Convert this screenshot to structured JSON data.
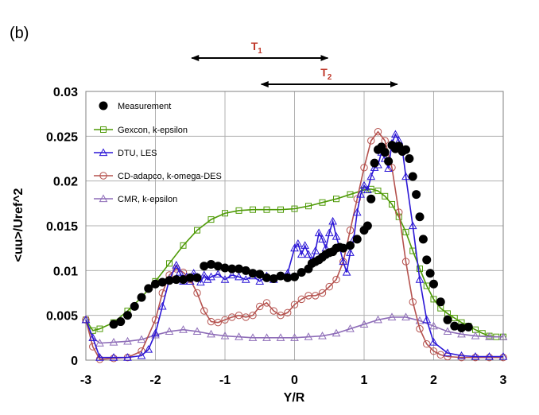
{
  "panel_label": "(b)",
  "annotations": [
    {
      "label": "T",
      "subscript": "1",
      "x_from": -1.5,
      "x_to": 0.5,
      "color": "#c0392b"
    },
    {
      "label": "T",
      "subscript": "2",
      "x_from": -0.5,
      "x_to": 1.5,
      "color": "#c0392b"
    }
  ],
  "chart_data": {
    "type": "line",
    "xlabel": "Y/R",
    "ylabel": "<uu>/Uref^2",
    "xlim": [
      -3,
      3
    ],
    "ylim": [
      0,
      0.03
    ],
    "xticks": [
      "-3",
      "-2",
      "-1",
      "0",
      "1",
      "2",
      "3"
    ],
    "yticks": [
      "0",
      "0.005",
      "0.01",
      "0.015",
      "0.02",
      "0.025",
      "0.03"
    ],
    "grid": true,
    "legend_position": "top-left",
    "series": [
      {
        "name": "Measurement",
        "color": "#000000",
        "marker": "filled-circle",
        "line": false,
        "x": [
          -2.6,
          -2.5,
          -2.4,
          -2.3,
          -2.2,
          -2.1,
          -2.0,
          -1.9,
          -1.8,
          -1.7,
          -1.6,
          -1.5,
          -1.4,
          -1.3,
          -1.2,
          -1.1,
          -1.0,
          -0.9,
          -0.8,
          -0.7,
          -0.6,
          -0.5,
          -0.4,
          -0.3,
          -0.2,
          -0.1,
          0.0,
          0.1,
          0.2,
          0.25,
          0.3,
          0.35,
          0.4,
          0.45,
          0.5,
          0.55,
          0.6,
          0.65,
          0.7,
          0.8,
          0.9,
          1.0,
          1.05,
          1.1,
          1.15,
          1.2,
          1.25,
          1.3,
          1.35,
          1.4,
          1.45,
          1.5,
          1.55,
          1.6,
          1.65,
          1.7,
          1.75,
          1.8,
          1.85,
          1.9,
          1.95,
          2.0,
          2.1,
          2.2,
          2.3,
          2.4,
          2.5
        ],
        "y": [
          0.004,
          0.0043,
          0.005,
          0.006,
          0.007,
          0.008,
          0.0085,
          0.0087,
          0.0089,
          0.009,
          0.009,
          0.0092,
          0.0092,
          0.0105,
          0.0107,
          0.0105,
          0.0103,
          0.0102,
          0.0102,
          0.01,
          0.0097,
          0.0096,
          0.0092,
          0.0091,
          0.0094,
          0.0092,
          0.0093,
          0.0098,
          0.0102,
          0.0108,
          0.011,
          0.0112,
          0.0115,
          0.0118,
          0.012,
          0.0121,
          0.0125,
          0.0126,
          0.0125,
          0.0128,
          0.0135,
          0.0145,
          0.015,
          0.018,
          0.022,
          0.0235,
          0.0238,
          0.0232,
          0.0222,
          0.024,
          0.0236,
          0.0239,
          0.0233,
          0.0235,
          0.0225,
          0.0205,
          0.0185,
          0.016,
          0.0135,
          0.0112,
          0.0097,
          0.0085,
          0.0065,
          0.0045,
          0.0038,
          0.0036,
          0.0037
        ]
      },
      {
        "name": "Gexcon, k-epsilon",
        "color": "#4e9a06",
        "marker": "open-square",
        "line": true,
        "x": [
          -3.0,
          -2.9,
          -2.8,
          -2.6,
          -2.4,
          -2.2,
          -2.0,
          -1.8,
          -1.6,
          -1.4,
          -1.2,
          -1.0,
          -0.8,
          -0.6,
          -0.4,
          -0.2,
          0.0,
          0.2,
          0.4,
          0.6,
          0.8,
          1.0,
          1.1,
          1.2,
          1.3,
          1.4,
          1.5,
          1.6,
          1.7,
          1.8,
          1.9,
          2.0,
          2.1,
          2.2,
          2.3,
          2.4,
          2.5,
          2.6,
          2.7,
          2.8,
          2.9,
          3.0
        ],
        "y": [
          0.0045,
          0.0033,
          0.0035,
          0.0042,
          0.0055,
          0.007,
          0.0088,
          0.0108,
          0.0128,
          0.0145,
          0.0157,
          0.0164,
          0.0167,
          0.0168,
          0.0168,
          0.0168,
          0.0169,
          0.0172,
          0.0176,
          0.018,
          0.0185,
          0.019,
          0.0191,
          0.0189,
          0.0183,
          0.0174,
          0.016,
          0.0143,
          0.0122,
          0.0102,
          0.0083,
          0.0068,
          0.0058,
          0.0052,
          0.0047,
          0.0042,
          0.0038,
          0.0034,
          0.003,
          0.0027,
          0.0026,
          0.0026
        ]
      },
      {
        "name": "DTU, LES",
        "color": "#2b16d6",
        "marker": "open-triangle",
        "line": true,
        "x": [
          -3.0,
          -2.9,
          -2.8,
          -2.6,
          -2.4,
          -2.2,
          -2.1,
          -2.0,
          -1.9,
          -1.8,
          -1.7,
          -1.65,
          -1.6,
          -1.55,
          -1.5,
          -1.45,
          -1.4,
          -1.35,
          -1.3,
          -1.25,
          -1.2,
          -1.1,
          -1.0,
          -0.9,
          -0.8,
          -0.7,
          -0.6,
          -0.5,
          -0.4,
          -0.3,
          -0.2,
          -0.1,
          0.0,
          0.05,
          0.1,
          0.15,
          0.2,
          0.25,
          0.3,
          0.35,
          0.4,
          0.45,
          0.5,
          0.55,
          0.6,
          0.65,
          0.7,
          0.75,
          0.8,
          0.85,
          0.9,
          0.95,
          1.0,
          1.05,
          1.1,
          1.15,
          1.2,
          1.25,
          1.3,
          1.35,
          1.4,
          1.45,
          1.5,
          1.55,
          1.6,
          1.7,
          1.8,
          1.9,
          2.0,
          2.2,
          2.4,
          2.6,
          2.8,
          3.0
        ],
        "y": [
          0.0045,
          0.0025,
          0.0003,
          0.0003,
          0.0003,
          0.0005,
          0.0012,
          0.003,
          0.006,
          0.009,
          0.0106,
          0.0098,
          0.0088,
          0.0093,
          0.0088,
          0.0097,
          0.0093,
          0.0087,
          0.0095,
          0.009,
          0.0093,
          0.0096,
          0.009,
          0.0095,
          0.0093,
          0.009,
          0.0094,
          0.0088,
          0.0094,
          0.009,
          0.0094,
          0.0097,
          0.0125,
          0.013,
          0.0118,
          0.0128,
          0.0118,
          0.011,
          0.0122,
          0.0142,
          0.0135,
          0.0125,
          0.0142,
          0.0155,
          0.0138,
          0.0125,
          0.011,
          0.0098,
          0.012,
          0.0135,
          0.0165,
          0.0185,
          0.0195,
          0.019,
          0.0205,
          0.0215,
          0.0218,
          0.0232,
          0.0225,
          0.0214,
          0.0242,
          0.0252,
          0.0245,
          0.0235,
          0.0205,
          0.015,
          0.009,
          0.0045,
          0.002,
          0.0008,
          0.0005,
          0.0004,
          0.0004,
          0.0004
        ]
      },
      {
        "name": "CD-adapco, k-omega-DES",
        "color": "#b5524e",
        "marker": "open-circle",
        "line": true,
        "x": [
          -3.0,
          -2.9,
          -2.8,
          -2.6,
          -2.4,
          -2.2,
          -2.0,
          -1.9,
          -1.8,
          -1.7,
          -1.6,
          -1.5,
          -1.4,
          -1.3,
          -1.2,
          -1.1,
          -1.0,
          -0.9,
          -0.8,
          -0.7,
          -0.6,
          -0.5,
          -0.4,
          -0.3,
          -0.2,
          -0.1,
          0.0,
          0.1,
          0.2,
          0.3,
          0.4,
          0.5,
          0.6,
          0.7,
          0.8,
          0.9,
          1.0,
          1.1,
          1.2,
          1.3,
          1.4,
          1.5,
          1.6,
          1.7,
          1.8,
          1.9,
          2.0,
          2.1,
          2.2,
          2.4,
          2.6,
          2.8,
          3.0
        ],
        "y": [
          0.0045,
          0.0015,
          0.0001,
          0.0002,
          0.0003,
          0.001,
          0.0045,
          0.0075,
          0.0095,
          0.0102,
          0.0098,
          0.009,
          0.0075,
          0.0055,
          0.0043,
          0.0042,
          0.0045,
          0.0048,
          0.005,
          0.0048,
          0.005,
          0.006,
          0.0064,
          0.0055,
          0.005,
          0.0053,
          0.0062,
          0.0068,
          0.0072,
          0.0072,
          0.0075,
          0.0082,
          0.009,
          0.011,
          0.0145,
          0.018,
          0.0215,
          0.0245,
          0.0255,
          0.0245,
          0.0215,
          0.0165,
          0.011,
          0.0065,
          0.0035,
          0.0018,
          0.001,
          0.0006,
          0.0004,
          0.0003,
          0.0003,
          0.0003,
          0.0003
        ]
      },
      {
        "name": "CMR, k-epsilon",
        "color": "#8e6db8",
        "marker": "open-triangle",
        "line": true,
        "x": [
          -3.0,
          -2.9,
          -2.8,
          -2.6,
          -2.4,
          -2.2,
          -2.0,
          -1.8,
          -1.6,
          -1.4,
          -1.2,
          -1.0,
          -0.8,
          -0.6,
          -0.4,
          -0.2,
          0.0,
          0.2,
          0.4,
          0.6,
          0.8,
          1.0,
          1.2,
          1.4,
          1.6,
          1.8,
          2.0,
          2.2,
          2.4,
          2.6,
          2.8,
          3.0
        ],
        "y": [
          0.0045,
          0.0025,
          0.0019,
          0.002,
          0.0021,
          0.0023,
          0.0028,
          0.0032,
          0.0034,
          0.0032,
          0.0029,
          0.0027,
          0.0026,
          0.0025,
          0.0025,
          0.0025,
          0.0025,
          0.0026,
          0.0027,
          0.003,
          0.0035,
          0.004,
          0.0045,
          0.0048,
          0.0048,
          0.0044,
          0.0038,
          0.0032,
          0.0029,
          0.0027,
          0.0026,
          0.0026
        ]
      }
    ]
  }
}
